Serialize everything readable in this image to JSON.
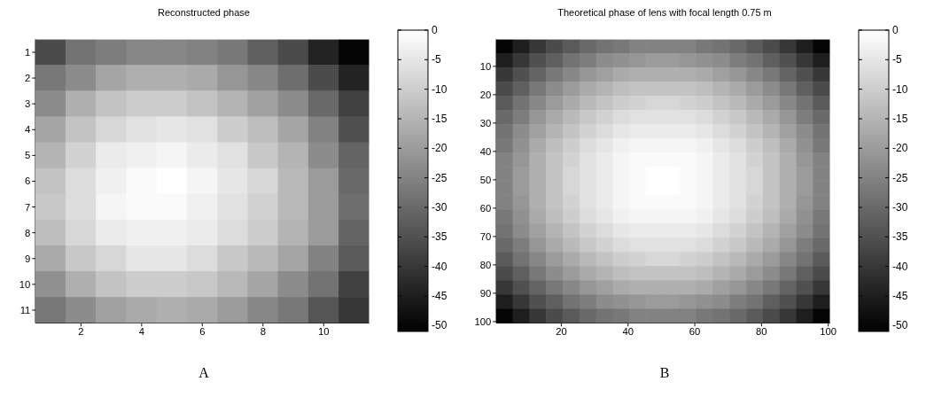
{
  "chart_data": [
    {
      "type": "heatmap",
      "title": "Reconstructed phase",
      "annotations": [
        "A"
      ],
      "xlim": [
        0.5,
        11.5
      ],
      "ylim": [
        11.5,
        0.5
      ],
      "xticks": [
        2,
        4,
        6,
        8,
        10
      ],
      "yticks": [
        1,
        2,
        3,
        4,
        5,
        6,
        7,
        8,
        9,
        10,
        11
      ],
      "clim": [
        -51,
        0
      ],
      "cticks": [
        0,
        -5,
        -10,
        -15,
        -20,
        -25,
        -30,
        -35,
        -40,
        -45,
        -50
      ],
      "cells": [
        [
          -36,
          -28,
          -26,
          -24,
          -24,
          -25,
          -27,
          -32,
          -36,
          -44,
          -50
        ],
        [
          -27,
          -23,
          -18,
          -16,
          -16,
          -17,
          -21,
          -24,
          -29,
          -36,
          -44
        ],
        [
          -23,
          -16,
          -12,
          -10,
          -10,
          -12,
          -15,
          -19,
          -23,
          -30,
          -38
        ],
        [
          -18,
          -12,
          -8,
          -6,
          -5,
          -6,
          -10,
          -13,
          -18,
          -25,
          -35
        ],
        [
          -15,
          -9,
          -4,
          -3,
          -2,
          -4,
          -6,
          -11,
          -15,
          -23,
          -31
        ],
        [
          -12,
          -7,
          -3,
          -1,
          0,
          -2,
          -5,
          -8,
          -14,
          -20,
          -30
        ],
        [
          -11,
          -7,
          -2,
          -1,
          -1,
          -3,
          -6,
          -9,
          -14,
          -20,
          -29
        ],
        [
          -13,
          -8,
          -4,
          -3,
          -3,
          -4,
          -7,
          -10,
          -15,
          -20,
          -31
        ],
        [
          -17,
          -11,
          -8,
          -5,
          -5,
          -7,
          -11,
          -14,
          -18,
          -25,
          -33
        ],
        [
          -22,
          -16,
          -12,
          -10,
          -10,
          -11,
          -14,
          -18,
          -23,
          -28,
          -38
        ],
        [
          -27,
          -23,
          -19,
          -17,
          -16,
          -17,
          -20,
          -24,
          -27,
          -34,
          -40
        ]
      ]
    },
    {
      "type": "heatmap",
      "title": "Theoretical phase of lens with focal length 0.75 m",
      "annotations": [
        "B"
      ],
      "xlim": [
        0.5,
        100.5
      ],
      "ylim": [
        100.5,
        0.5
      ],
      "xticks": [
        20,
        40,
        60,
        80,
        100
      ],
      "yticks": [
        10,
        20,
        30,
        40,
        50,
        60,
        70,
        80,
        90,
        100
      ],
      "clim": [
        -51,
        0
      ],
      "cticks": [
        0,
        -5,
        -10,
        -15,
        -20,
        -25,
        -30,
        -35,
        -40,
        -45,
        -50
      ],
      "cells": [
        [
          -50,
          -45,
          -40,
          -36,
          -33,
          -30,
          -28,
          -27,
          -25,
          -25,
          -25,
          -25,
          -27,
          -28,
          -30,
          -33,
          -36,
          -40,
          -45,
          -50
        ],
        [
          -45,
          -40,
          -35,
          -32,
          -28,
          -26,
          -23,
          -22,
          -21,
          -20,
          -20,
          -21,
          -22,
          -23,
          -26,
          -28,
          -32,
          -35,
          -40,
          -45
        ],
        [
          -40,
          -35,
          -31,
          -27,
          -24,
          -21,
          -19,
          -17,
          -16,
          -16,
          -16,
          -16,
          -17,
          -19,
          -21,
          -24,
          -27,
          -31,
          -35,
          -40
        ],
        [
          -36,
          -32,
          -27,
          -23,
          -20,
          -17,
          -15,
          -13,
          -12,
          -12,
          -12,
          -12,
          -13,
          -15,
          -17,
          -20,
          -23,
          -27,
          -32,
          -36
        ],
        [
          -33,
          -28,
          -24,
          -20,
          -17,
          -14,
          -12,
          -10,
          -9,
          -8,
          -8,
          -9,
          -10,
          -12,
          -14,
          -17,
          -20,
          -24,
          -28,
          -33
        ],
        [
          -30,
          -26,
          -21,
          -17,
          -14,
          -11,
          -9,
          -7,
          -6,
          -6,
          -6,
          -6,
          -7,
          -9,
          -11,
          -14,
          -17,
          -21,
          -26,
          -30
        ],
        [
          -28,
          -23,
          -19,
          -15,
          -12,
          -9,
          -7,
          -5,
          -4,
          -4,
          -4,
          -4,
          -5,
          -7,
          -9,
          -12,
          -15,
          -19,
          -23,
          -28
        ],
        [
          -27,
          -22,
          -17,
          -13,
          -10,
          -7,
          -5,
          -3,
          -2,
          -2,
          -2,
          -2,
          -3,
          -5,
          -7,
          -10,
          -13,
          -17,
          -22,
          -27
        ],
        [
          -25,
          -21,
          -16,
          -12,
          -9,
          -6,
          -4,
          -2,
          -1,
          -1,
          -1,
          -1,
          -2,
          -4,
          -6,
          -9,
          -12,
          -16,
          -21,
          -25
        ],
        [
          -25,
          -20,
          -16,
          -12,
          -8,
          -6,
          -4,
          -2,
          -1,
          0,
          0,
          -1,
          -2,
          -4,
          -6,
          -8,
          -12,
          -16,
          -20,
          -25
        ],
        [
          -25,
          -20,
          -16,
          -12,
          -8,
          -6,
          -4,
          -2,
          -1,
          0,
          0,
          -1,
          -2,
          -4,
          -6,
          -8,
          -12,
          -16,
          -20,
          -25
        ],
        [
          -25,
          -21,
          -16,
          -12,
          -9,
          -6,
          -4,
          -2,
          -1,
          -1,
          -1,
          -1,
          -2,
          -4,
          -6,
          -9,
          -12,
          -16,
          -21,
          -25
        ],
        [
          -27,
          -22,
          -17,
          -13,
          -10,
          -7,
          -5,
          -3,
          -2,
          -2,
          -2,
          -2,
          -3,
          -5,
          -7,
          -10,
          -13,
          -17,
          -22,
          -27
        ],
        [
          -28,
          -23,
          -19,
          -15,
          -12,
          -9,
          -7,
          -5,
          -4,
          -4,
          -4,
          -4,
          -5,
          -7,
          -9,
          -12,
          -15,
          -19,
          -23,
          -28
        ],
        [
          -30,
          -26,
          -21,
          -17,
          -14,
          -11,
          -9,
          -7,
          -6,
          -6,
          -6,
          -6,
          -7,
          -9,
          -11,
          -14,
          -17,
          -21,
          -26,
          -30
        ],
        [
          -33,
          -28,
          -24,
          -20,
          -17,
          -14,
          -12,
          -10,
          -9,
          -8,
          -8,
          -9,
          -10,
          -12,
          -14,
          -17,
          -20,
          -24,
          -28,
          -33
        ],
        [
          -36,
          -32,
          -27,
          -23,
          -20,
          -17,
          -15,
          -13,
          -12,
          -12,
          -12,
          -12,
          -13,
          -15,
          -17,
          -20,
          -23,
          -27,
          -32,
          -36
        ],
        [
          -40,
          -35,
          -31,
          -27,
          -24,
          -21,
          -19,
          -17,
          -16,
          -16,
          -16,
          -16,
          -17,
          -19,
          -21,
          -24,
          -27,
          -31,
          -35,
          -40
        ],
        [
          -45,
          -40,
          -35,
          -32,
          -28,
          -26,
          -23,
          -22,
          -21,
          -20,
          -20,
          -21,
          -22,
          -23,
          -26,
          -28,
          -32,
          -35,
          -40,
          -45
        ],
        [
          -50,
          -45,
          -40,
          -36,
          -33,
          -30,
          -28,
          -27,
          -25,
          -25,
          -25,
          -25,
          -27,
          -28,
          -30,
          -33,
          -36,
          -40,
          -45,
          -50
        ]
      ]
    }
  ]
}
